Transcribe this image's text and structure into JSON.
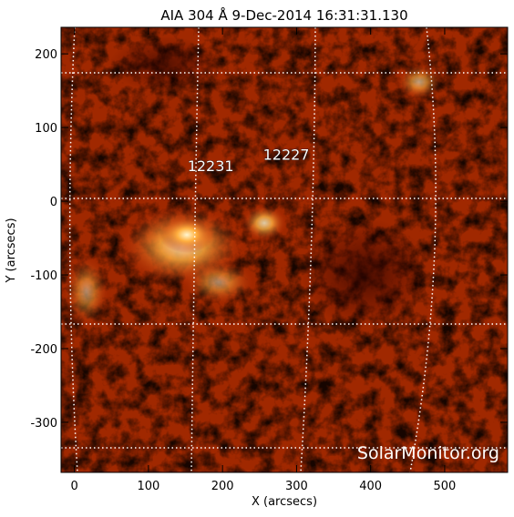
{
  "chart_data": {
    "type": "image",
    "title": "AIA 304 Å   9-Dec-2014 16:31:31.130",
    "xlabel": "X (arcsecs)",
    "ylabel": "Y (arcsecs)",
    "xlim": [
      -18,
      585
    ],
    "ylim": [
      -368,
      236
    ],
    "xticks": [
      0,
      100,
      200,
      300,
      400,
      500
    ],
    "yticks": [
      -300,
      -200,
      -100,
      0,
      100,
      200
    ],
    "annotations": [
      {
        "text": "12231",
        "x": 184,
        "y": 48
      },
      {
        "text": "12227",
        "x": 286,
        "y": 64
      }
    ],
    "watermark": "SolarMonitor.org"
  }
}
